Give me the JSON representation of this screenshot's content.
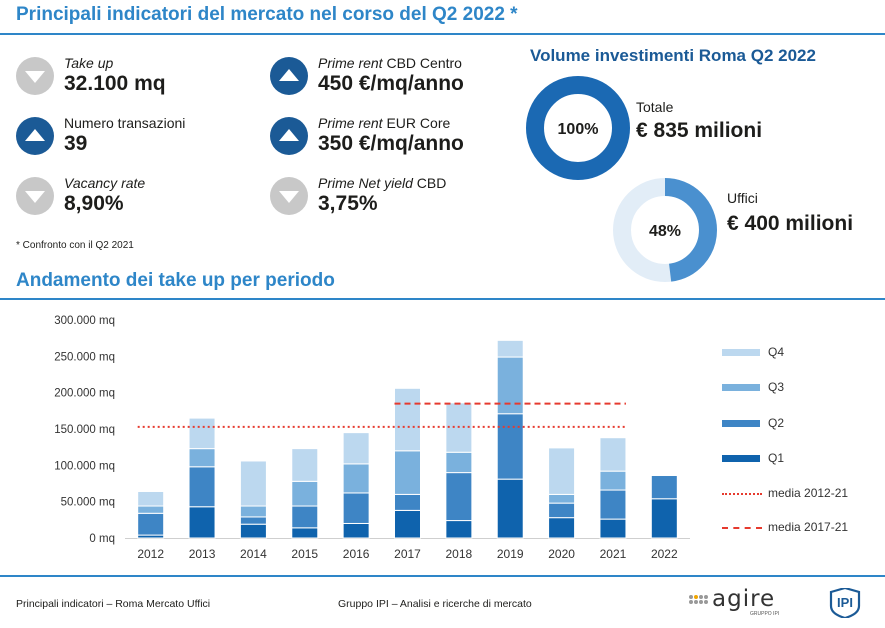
{
  "header": {
    "title": "Principali indicatori del mercato nel corso del Q2 2022 *"
  },
  "indicators": [
    {
      "label_italic": "Take up",
      "label_rest": "",
      "value": "32.100 mq",
      "trend": "down"
    },
    {
      "label_italic": "",
      "label_rest": "Numero transazioni",
      "value": "39",
      "trend": "up"
    },
    {
      "label_italic": "Vacancy rate",
      "label_rest": "",
      "value": "8,90%",
      "trend": "down"
    },
    {
      "label_italic": "Prime rent",
      "label_rest": " CBD Centro",
      "value": "450 €/mq/anno",
      "trend": "up"
    },
    {
      "label_italic": "Prime rent",
      "label_rest": " EUR Core",
      "value": "350 €/mq/anno",
      "trend": "up"
    },
    {
      "label_italic": "Prime Net yield",
      "label_rest": " CBD",
      "value": "3,75%",
      "trend": "down"
    }
  ],
  "footnote": "* Confronto con il Q2 2021",
  "investments": {
    "title": "Volume investimenti Roma Q2 2022",
    "totale": {
      "label": "Totale",
      "value": "€ 835 milioni",
      "percent_label": "100%",
      "share": 1.0
    },
    "uffici": {
      "label": "Uffici",
      "value": "€ 400 milioni",
      "percent_label": "48%",
      "share": 0.48
    }
  },
  "section_title": "Andamento dei take up per periodo",
  "chart_data": {
    "type": "bar",
    "stacked": true,
    "title": "Andamento dei take up per periodo",
    "categories": [
      "2012",
      "2013",
      "2014",
      "2015",
      "2016",
      "2017",
      "2018",
      "2019",
      "2020",
      "2021",
      "2022"
    ],
    "series": [
      {
        "name": "Q1",
        "color": "#0f63ad",
        "values": [
          4000,
          43000,
          19000,
          14000,
          20000,
          38000,
          24000,
          81000,
          28000,
          26000,
          54000
        ]
      },
      {
        "name": "Q2",
        "color": "#3e85c5",
        "values": [
          30000,
          55000,
          10000,
          30000,
          42000,
          22000,
          66000,
          90000,
          20000,
          40000,
          32000
        ]
      },
      {
        "name": "Q3",
        "color": "#7ab1dd",
        "values": [
          10000,
          25000,
          15000,
          34000,
          40000,
          60000,
          28000,
          78000,
          12000,
          26000,
          0
        ]
      },
      {
        "name": "Q4",
        "color": "#bcd8ef",
        "values": [
          20000,
          42000,
          62000,
          45000,
          43000,
          86000,
          68000,
          23000,
          64000,
          46000,
          0
        ]
      }
    ],
    "reference_lines": [
      {
        "name": "media 2012-21",
        "value": 153000,
        "style": "dotted",
        "color": "#e63a2e",
        "from": "2012",
        "to": "2021"
      },
      {
        "name": "media 2017-21",
        "value": 185000,
        "style": "dashed",
        "color": "#e63a2e",
        "from": "2017",
        "to": "2021"
      }
    ],
    "ylim": [
      0,
      300000
    ],
    "yticks": [
      0,
      50000,
      100000,
      150000,
      200000,
      250000,
      300000
    ],
    "ytick_labels": [
      "0 mq",
      "50.000 mq",
      "100.000 mq",
      "150.000 mq",
      "200.000 mq",
      "250.000 mq",
      "300.000 mq"
    ],
    "xlabel": "",
    "ylabel": "",
    "grid": false,
    "legend_position": "right"
  },
  "footer": {
    "left": "Principali indicatori – Roma Mercato Uffici",
    "center": "Gruppo IPI – Analisi e ricerche di mercato",
    "logo_agire": "agire",
    "logo_agire_sub": "GRUPPO IPI",
    "logo_ipi": "IPI"
  }
}
